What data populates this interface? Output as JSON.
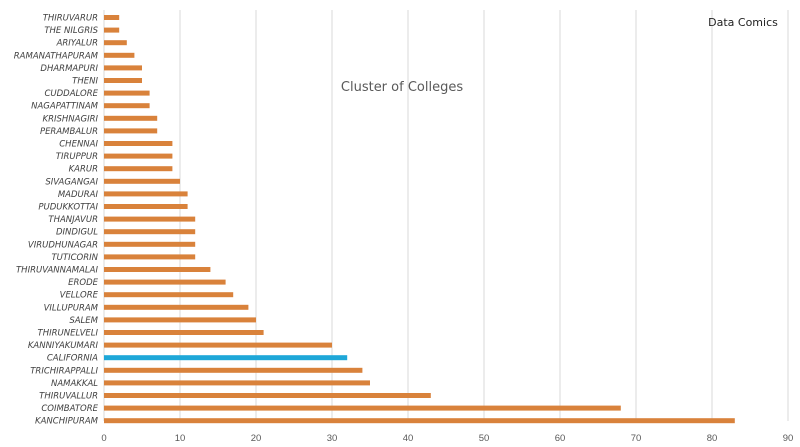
{
  "chart_data": {
    "type": "bar",
    "orientation": "horizontal",
    "title": "Cluster of Colleges",
    "watermark": "Data Comics",
    "xlabel": "",
    "ylabel": "",
    "xlim": [
      0,
      90
    ],
    "x_ticks": [
      "0",
      "10",
      "20",
      "30",
      "40",
      "50",
      "60",
      "70",
      "80",
      "90"
    ],
    "grid": true,
    "categories": [
      "THIRUVARUR",
      "THE NILGRIS",
      "ARIYALUR",
      "RAMANATHAPURAM",
      "DHARMAPURI",
      "THENI",
      "CUDDALORE",
      "NAGAPATTINAM",
      "KRISHNAGIRI",
      "PERAMBALUR",
      "CHENNAI",
      "TIRUPPUR",
      "KARUR",
      "SIVAGANGAI",
      "MADURAI",
      "PUDUKKOTTAI",
      "THANJAVUR",
      "DINDIGUL",
      "VIRUDHUNAGAR",
      "TUTICORIN",
      "THIRUVANNAMALAI",
      "ERODE",
      "VELLORE",
      "VILLUPURAM",
      "SALEM",
      "THIRUNELVELI",
      "KANNIYAKUMARI",
      "CALIFORNIA",
      "TRICHIRAPPALLI",
      "NAMAKKAL",
      "THIRUVALLUR",
      "COIMBATORE",
      "KANCHIPURAM"
    ],
    "values": [
      2,
      2,
      3,
      4,
      5,
      5,
      6,
      6,
      7,
      7,
      9,
      9,
      9,
      10,
      11,
      11,
      12,
      12,
      12,
      12,
      14,
      16,
      17,
      19,
      20,
      21,
      30,
      32,
      34,
      35,
      43,
      68,
      83
    ],
    "colors": {
      "bar": "#D9823B",
      "highlight": "#1EA7D8",
      "highlight_category": "CALIFORNIA"
    }
  }
}
